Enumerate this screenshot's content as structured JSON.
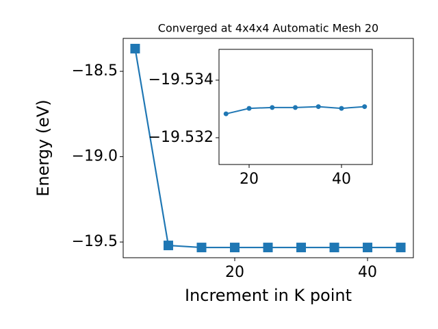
{
  "chart_data": [
    {
      "type": "line",
      "title": "Converged at 4x4x4 Automatic Mesh 20",
      "xlabel": "Increment in K point",
      "ylabel": "Energy (eV)",
      "x": [
        5,
        10,
        15,
        20,
        25,
        30,
        35,
        40,
        45
      ],
      "series": [
        {
          "color": "#1f77b4",
          "marker": "square",
          "values": [
            -18.367,
            -19.52,
            -19.532,
            -19.532,
            -19.532,
            -19.532,
            -19.532,
            -19.532,
            -19.532
          ]
        }
      ],
      "xlim": [
        3.2,
        46.9
      ],
      "xticks": [
        20,
        40
      ],
      "ylim": [
        -19.592,
        -18.307
      ],
      "yticks": [
        {
          "value": -19.5,
          "label": "−19.5"
        },
        {
          "value": -19.0,
          "label": "−19.0"
        },
        {
          "value": -18.5,
          "label": "−18.5"
        }
      ]
    },
    {
      "type": "line",
      "x": [
        15,
        20,
        25,
        30,
        35,
        40,
        45
      ],
      "series": [
        {
          "color": "#1f77b4",
          "marker": "circle",
          "values": [
            -19.53283,
            -19.53302,
            -19.53305,
            -19.53305,
            -19.53308,
            -19.53302,
            -19.53308
          ]
        }
      ],
      "xlim": [
        13.48,
        46.67
      ],
      "xticks": [
        20,
        40
      ],
      "ylim": [
        -19.53107,
        -19.53507
      ],
      "yticks": [
        {
          "value": -19.532,
          "label": "−19.532"
        },
        {
          "value": -19.534,
          "label": "−19.534"
        }
      ]
    }
  ]
}
